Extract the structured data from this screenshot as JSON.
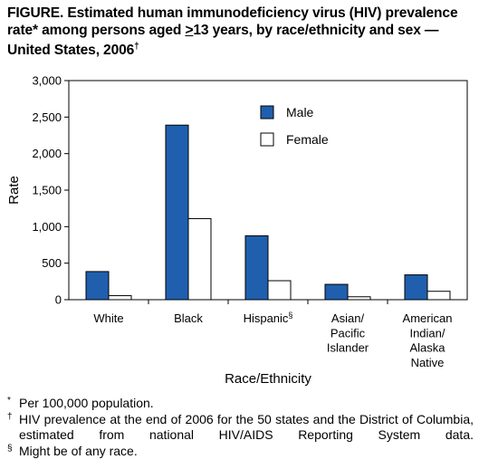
{
  "title_parts": {
    "p1": "FIGURE. Estimated human immunodeficiency virus (HIV) prevalence rate",
    "p2": "* among persons aged ",
    "p3": ">",
    "p4": "13 years, by race/ethnicity and sex — United States, 2006",
    "p5": "†"
  },
  "chart_data": {
    "type": "bar",
    "title": "Estimated human immunodeficiency virus (HIV) prevalence rate* among persons aged >13 years, by race/ethnicity and sex — United States, 2006†",
    "xlabel": "Race/Ethnicity",
    "ylabel": "Rate",
    "ylim": [
      0,
      3000
    ],
    "yticks": [
      0,
      500,
      1000,
      1500,
      2000,
      2500,
      3000
    ],
    "ytick_labels": [
      "0",
      "500",
      "1,000",
      "1,500",
      "2,000",
      "2,500",
      "3,000"
    ],
    "categories": [
      {
        "lines": [
          "White"
        ],
        "sup": ""
      },
      {
        "lines": [
          "Black"
        ],
        "sup": ""
      },
      {
        "lines": [
          "Hispanic"
        ],
        "sup": "§"
      },
      {
        "lines": [
          "Asian/",
          "Pacific",
          "Islander"
        ],
        "sup": ""
      },
      {
        "lines": [
          "American",
          "Indian/",
          "Alaska",
          "Native"
        ],
        "sup": ""
      }
    ],
    "series": [
      {
        "name": "Male",
        "color": "#1f5fae",
        "values": [
          385,
          2390,
          875,
          210,
          340
        ]
      },
      {
        "name": "Female",
        "color": "#ffffff",
        "values": [
          55,
          1110,
          260,
          40,
          115
        ]
      }
    ],
    "legend_position": "top-right",
    "grid": false
  },
  "footnotes": [
    {
      "mark": "*",
      "text": "Per 100,000 population."
    },
    {
      "mark": "†",
      "text": "HIV prevalence at the end of 2006 for the 50 states and the District of Columbia, estimated from national HIV/AIDS Reporting System data."
    },
    {
      "mark": "§",
      "text": "Might be of any race."
    }
  ]
}
